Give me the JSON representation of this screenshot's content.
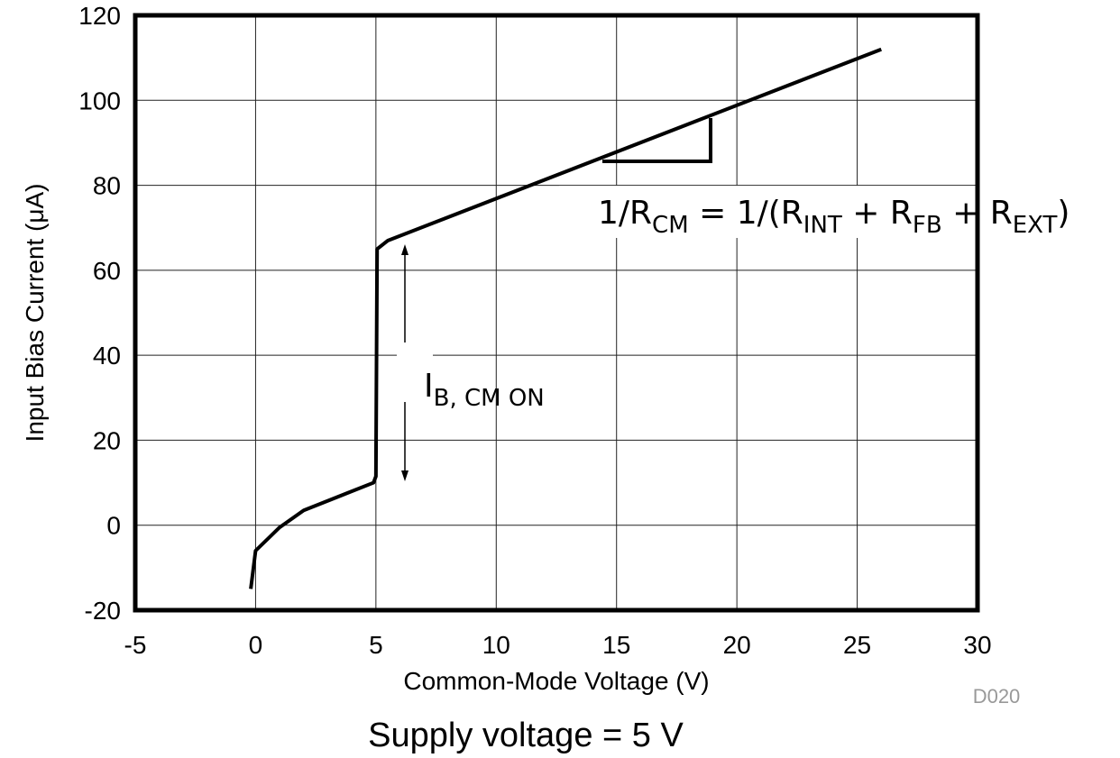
{
  "chart_data": {
    "type": "line",
    "x_label": "Common-Mode Voltage (V)",
    "y_label": "Input Bias Current (μA)",
    "x": [
      -0.2,
      0,
      1,
      2,
      4.9,
      5,
      5.05,
      5.5,
      26
    ],
    "values": [
      -15,
      -6,
      -0.5,
      3.5,
      10,
      11.5,
      65,
      67,
      112
    ],
    "color": "#000000",
    "xlim": [
      -5,
      30
    ],
    "xticks": [
      -5,
      0,
      5,
      10,
      15,
      20,
      25,
      30
    ],
    "ylim": [
      -20,
      120
    ],
    "yticks": [
      -20,
      0,
      20,
      40,
      60,
      80,
      100,
      120
    ],
    "grid": true,
    "slope_label": [
      "1/R",
      "CM",
      " = 1/(R",
      "INT",
      " + R",
      "FB",
      " + R",
      "EXT",
      ")"
    ],
    "current_label": [
      "I",
      "B, CM ON"
    ],
    "source": "D020",
    "footnote": "Supply voltage = 5 V"
  }
}
